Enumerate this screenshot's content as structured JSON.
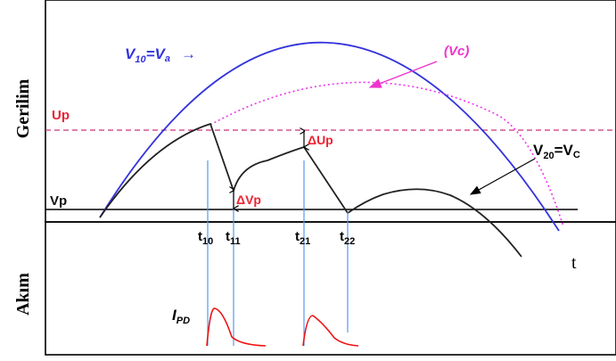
{
  "axes": {
    "y_top_label": "Gerilim",
    "y_bottom_label": "Akım",
    "x_label": "t"
  },
  "curves": {
    "v10": {
      "main": "V",
      "sub": "10",
      "eq": "=V",
      "sub2": "a",
      "arrow": "→"
    },
    "vc": "(Vc)",
    "v20": {
      "main": "V",
      "sub": "20",
      "eq": "=V",
      "sub2": "C"
    }
  },
  "levels": {
    "up": "Up",
    "vp": "Vp"
  },
  "deltas": {
    "delta_up": "ΔUp",
    "delta_vp": "ΔVp"
  },
  "times": [
    {
      "main": "t",
      "sub": "10"
    },
    {
      "main": "t",
      "sub": "11"
    },
    {
      "main": "t",
      "sub": "21"
    },
    {
      "main": "t",
      "sub": "22"
    }
  ],
  "current": {
    "main": "I",
    "sub": "PD"
  },
  "colors": {
    "va_curve": "#3333dd",
    "vc_curve": "#ee33ee",
    "up_line": "#cc3377",
    "up_text": "#ee2233",
    "current_curve": "#ee1111",
    "marker_lines": "#5599ee",
    "vc_label": "#ee33cc"
  }
}
